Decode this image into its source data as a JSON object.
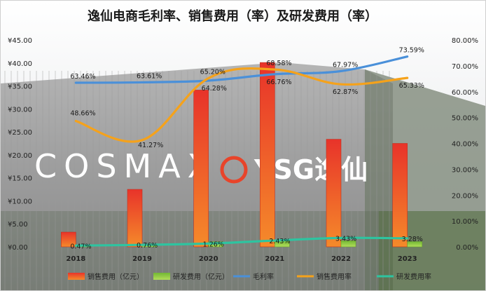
{
  "chart_data": {
    "type": "bar",
    "title": "逸仙电商毛利率、销售费用（率）及研发费用（率）",
    "categories": [
      "2018",
      "2019",
      "2020",
      "2021",
      "2022",
      "2023"
    ],
    "y_left": {
      "ylim": [
        0,
        45
      ],
      "ticks": [
        "¥0.00",
        "¥5.00",
        "¥10.00",
        "¥15.00",
        "¥20.00",
        "¥25.00",
        "¥30.00",
        "¥35.00",
        "¥40.00",
        "¥45.00"
      ]
    },
    "y_right": {
      "ylim": [
        0,
        80
      ],
      "ticks": [
        "0.00%",
        "10.00%",
        "20.00%",
        "30.00%",
        "40.00%",
        "50.00%",
        "60.00%",
        "70.00%",
        "80.00%"
      ]
    },
    "series": [
      {
        "name": "销售费用（亿元）",
        "kind": "bar",
        "axis": "left",
        "color": "#e8442a",
        "values": [
          3.2,
          12.5,
          34.1,
          40.1,
          23.4,
          22.5
        ]
      },
      {
        "name": "研发费用（亿元）",
        "kind": "bar",
        "axis": "left",
        "color": "#8cc63f",
        "values": [
          0.25,
          0.54,
          1.11,
          1.42,
          1.33,
          1.13
        ]
      },
      {
        "name": "毛利率",
        "kind": "line",
        "axis": "right",
        "color": "#4a90d9",
        "values": [
          63.46,
          63.61,
          64.28,
          66.76,
          67.97,
          73.59
        ],
        "labels": [
          "63.46%",
          "63.61%",
          "64.28%",
          "66.76%",
          "67.97%",
          "73.59%"
        ]
      },
      {
        "name": "销售费用率",
        "kind": "line",
        "axis": "right",
        "color": "#f5a21b",
        "values": [
          48.66,
          41.27,
          65.2,
          68.58,
          62.87,
          65.33
        ],
        "labels": [
          "48.66%",
          "41.27%",
          "65.20%",
          "68.58%",
          "62.87%",
          "65.33%"
        ]
      },
      {
        "name": "研发费用率",
        "kind": "line",
        "axis": "right",
        "color": "#2ec4a0",
        "values": [
          0.47,
          0.76,
          1.26,
          2.43,
          3.43,
          3.28
        ],
        "labels": [
          "0.47%",
          "0.76%",
          "1.26%",
          "2.43%",
          "3.43%",
          "3.28%"
        ]
      }
    ],
    "legend_position": "bottom",
    "background": {
      "logo_text": "COSMAX",
      "logo_text_2": "YSG逸仙"
    }
  }
}
